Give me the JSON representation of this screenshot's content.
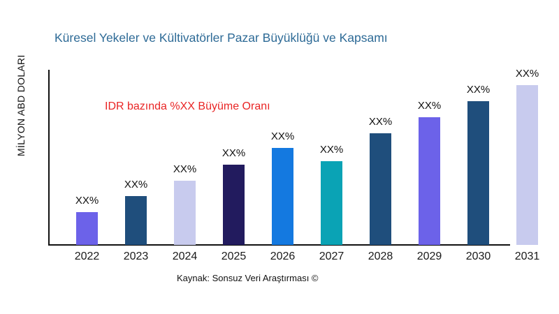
{
  "title": {
    "text": "Küresel Yekeler ve Kültivatörler Pazar Büyüklüğü ve Kapsamı",
    "color": "#2D6A96"
  },
  "y_axis": {
    "label": "MİLYON ABD DOLARI"
  },
  "annotation": {
    "text": "IDR bazında %XX Büyüme Oranı",
    "color": "#E92525"
  },
  "footer": {
    "text": "Kaynak: Sonsuz Veri Araştırması ©"
  },
  "chart_data": {
    "type": "bar",
    "title": "Küresel Yekeler ve Kültivatörler Pazar Büyüklüğü ve Kapsamı",
    "xlabel": "",
    "ylabel": "MİLYON ABD DOLARI",
    "categories": [
      "2022",
      "2023",
      "2024",
      "2025",
      "2026",
      "2027",
      "2028",
      "2029",
      "2030",
      "2031"
    ],
    "value_labels": [
      "XX%",
      "XX%",
      "XX%",
      "XX%",
      "XX%",
      "XX%",
      "XX%",
      "XX%",
      "XX%",
      "XX%"
    ],
    "values": [
      47,
      70,
      92,
      115,
      139,
      120,
      160,
      183,
      206,
      229
    ],
    "values_unit": "bar height in px; numeric values masked as XX% on chart, no numeric y-axis ticks shown",
    "bar_colors": [
      "#6C62E9",
      "#1F4E7C",
      "#C8CBEE",
      "#221B5E",
      "#1479E0",
      "#0AA3B5",
      "#1F4E7C",
      "#6C62E9",
      "#1F4E7C",
      "#C8CBEE"
    ],
    "axis_color": "#111111",
    "grid": false,
    "legend": "none"
  }
}
